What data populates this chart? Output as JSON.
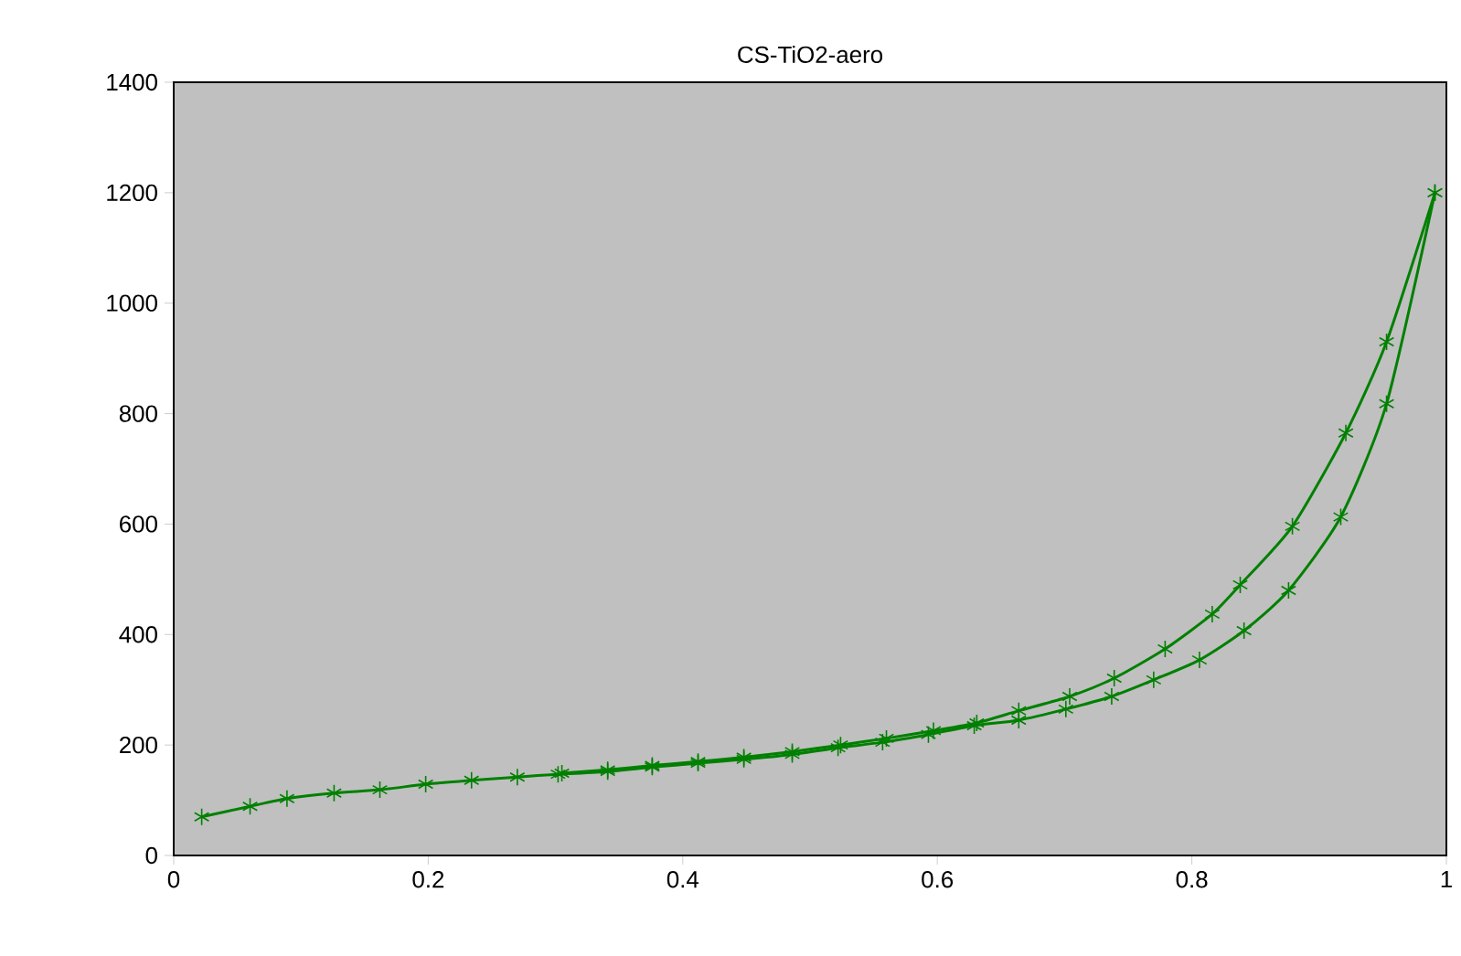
{
  "chart_data": {
    "type": "line",
    "title": "CS-TiO2-aero",
    "marker": "cross",
    "line_style": "solid",
    "xlim": [
      0,
      1
    ],
    "xticks": [
      0,
      0.2,
      0.4,
      0.6,
      0.8,
      1
    ],
    "ylim": [
      0,
      1400
    ],
    "yticks": [
      0,
      200,
      400,
      600,
      800,
      1000,
      1200,
      1400
    ],
    "series": [
      {
        "color": "#008000",
        "x": [
          0.022,
          0.06,
          0.089,
          0.126,
          0.162,
          0.198,
          0.234,
          0.27,
          0.302,
          0.341,
          0.376,
          0.412,
          0.448,
          0.486,
          0.522,
          0.557,
          0.593,
          0.629,
          0.664,
          0.701,
          0.737,
          0.77,
          0.806,
          0.841,
          0.876,
          0.917,
          0.953,
          0.991
        ],
        "values": [
          70,
          89,
          103,
          113,
          119,
          129,
          136,
          142,
          147,
          152,
          160,
          167,
          174,
          183,
          195,
          205,
          219,
          235,
          245,
          265,
          288,
          318,
          354,
          407,
          480,
          613,
          818,
          1200
        ]
      },
      {
        "color": "#008000",
        "x": [
          0.991,
          0.953,
          0.921,
          0.879,
          0.838,
          0.816,
          0.779,
          0.739,
          0.704,
          0.664,
          0.631,
          0.597,
          0.56,
          0.524,
          0.486,
          0.448,
          0.412,
          0.376,
          0.341,
          0.305
        ],
        "values": [
          1200,
          930,
          765,
          596,
          490,
          437,
          374,
          321,
          288,
          262,
          240,
          226,
          212,
          200,
          188,
          178,
          170,
          163,
          155,
          149
        ]
      }
    ]
  }
}
